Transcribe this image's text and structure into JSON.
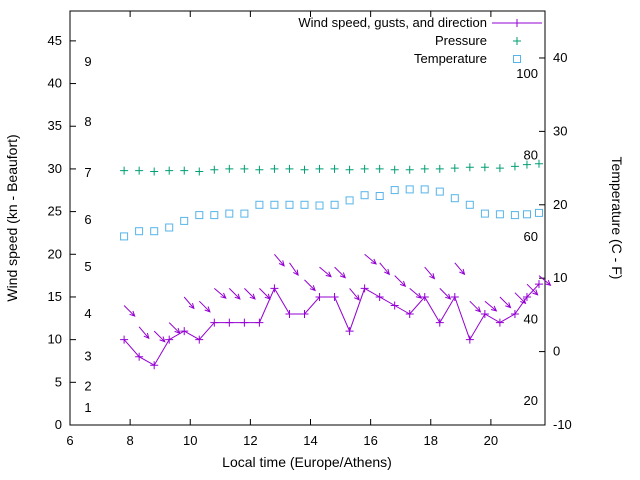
{
  "chart_data": {
    "type": "line",
    "title": "",
    "xlabel": "Local time (Europe/Athens)",
    "ylabel_left": "Wind speed (kn - Beaufort)",
    "ylabel_right": "Temperature (C - F)",
    "x_range": [
      6,
      21.8
    ],
    "y_left_range": [
      0,
      48.5
    ],
    "y_right_range": [
      -10,
      46.4
    ],
    "x_ticks": [
      6,
      8,
      10,
      12,
      14,
      16,
      18,
      20
    ],
    "y_left_ticks": [
      0,
      5,
      10,
      15,
      20,
      25,
      30,
      35,
      40,
      45
    ],
    "y_right_ticks": [
      -10,
      0,
      10,
      20,
      30,
      40
    ],
    "beaufort_scale_labels": [
      {
        "text": "1",
        "kn": 2
      },
      {
        "text": "2",
        "kn": 4.5
      },
      {
        "text": "3",
        "kn": 8
      },
      {
        "text": "4",
        "kn": 13
      },
      {
        "text": "5",
        "kn": 18.5
      },
      {
        "text": "6",
        "kn": 24
      },
      {
        "text": "7",
        "kn": 29.5
      },
      {
        "text": "8",
        "kn": 35.5
      },
      {
        "text": "9",
        "kn": 42.5
      }
    ],
    "fahrenheit_scale_labels": [
      {
        "text": "20",
        "c": -6.7
      },
      {
        "text": "40",
        "c": 4.4
      },
      {
        "text": "60",
        "c": 15.6
      },
      {
        "text": "80",
        "c": 26.7
      },
      {
        "text": "100",
        "c": 37.8
      }
    ],
    "colors": {
      "wind": "#9400d3",
      "pressure": "#009e73",
      "temperature": "#56b4e9",
      "axis": "#000000"
    },
    "legend_items": [
      {
        "label": "Wind speed, gusts, and direction",
        "series": "wind"
      },
      {
        "label": "Pressure",
        "series": "pressure"
      },
      {
        "label": "Temperature",
        "series": "temperature"
      }
    ],
    "x": [
      7.8,
      8.3,
      8.8,
      9.3,
      9.8,
      10.3,
      10.8,
      11.3,
      11.8,
      12.3,
      12.8,
      13.3,
      13.8,
      14.3,
      14.8,
      15.3,
      15.8,
      16.3,
      16.8,
      17.3,
      17.8,
      18.3,
      18.8,
      19.3,
      19.8,
      20.3,
      20.8,
      21.2,
      21.6
    ],
    "series": [
      {
        "name": "wind_speed_kn",
        "axis": "left",
        "style": "line-plus",
        "values": [
          10,
          8,
          7,
          10,
          11,
          10,
          12,
          12,
          12,
          12,
          16,
          13,
          13,
          15,
          15,
          11,
          16,
          15,
          14,
          13,
          15,
          12,
          15,
          10,
          13,
          12,
          13,
          15,
          16.5
        ]
      },
      {
        "name": "wind_gust_kn_direction_arrows",
        "axis": "left",
        "style": "arrow",
        "values": [
          14,
          11.5,
          11,
          12,
          15,
          14.5,
          16,
          16,
          16,
          16,
          20,
          19,
          17,
          18.5,
          18.5,
          16,
          20,
          19,
          17.5,
          16,
          18.5,
          16,
          19,
          14.5,
          14.5,
          15,
          15.5,
          16.5,
          17.5
        ],
        "arrow_angles_deg": [
          45,
          50,
          45,
          45,
          50,
          45,
          40,
          45,
          45,
          45,
          50,
          55,
          45,
          40,
          45,
          50,
          40,
          50,
          45,
          40,
          50,
          45,
          50,
          45,
          40,
          45,
          45,
          45,
          40
        ]
      },
      {
        "name": "pressure_plotted",
        "axis": "left",
        "style": "plus",
        "values": [
          29.8,
          29.8,
          29.7,
          29.8,
          29.8,
          29.7,
          29.9,
          30.0,
          30.0,
          29.9,
          30.0,
          30.0,
          29.9,
          30.0,
          30.0,
          29.9,
          30.0,
          30.0,
          29.9,
          29.9,
          30.0,
          30.0,
          30.1,
          30.2,
          30.2,
          30.1,
          30.3,
          30.5,
          30.6
        ]
      },
      {
        "name": "temperature_c",
        "axis": "right",
        "style": "square",
        "values": [
          15.7,
          16.4,
          16.4,
          16.9,
          17.8,
          18.6,
          18.6,
          18.8,
          18.8,
          20.0,
          20.0,
          20.0,
          20.0,
          19.9,
          20.0,
          20.6,
          21.3,
          21.2,
          22.0,
          22.1,
          22.1,
          21.8,
          20.9,
          20.0,
          18.8,
          18.7,
          18.6,
          18.7,
          18.9
        ]
      }
    ]
  }
}
